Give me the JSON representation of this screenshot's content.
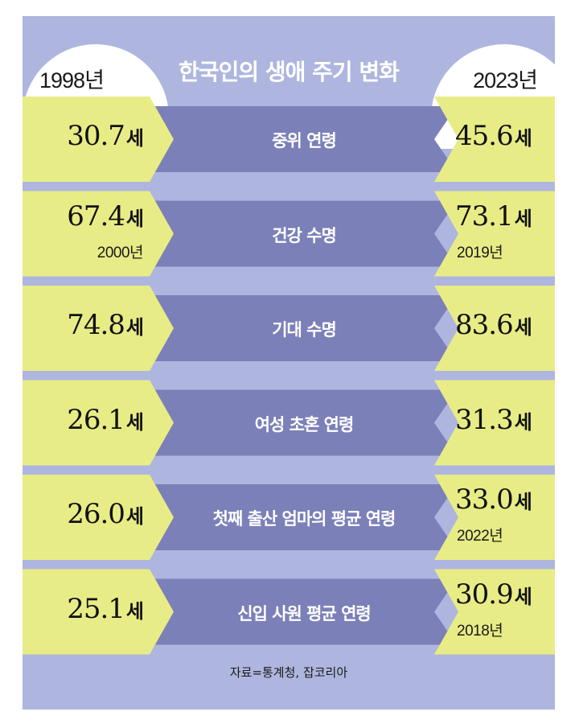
{
  "title": "한국인의 생애 주기 변화",
  "year_left": "1998년",
  "year_right": "2023년",
  "unit": "세",
  "rows": [
    {
      "label": "중위 연령",
      "left": "30.7",
      "left_year": "",
      "right": "45.6",
      "right_year": ""
    },
    {
      "label": "건강 수명",
      "left": "67.4",
      "left_year": "2000년",
      "right": "73.1",
      "right_year": "2019년"
    },
    {
      "label": "기대 수명",
      "left": "74.8",
      "left_year": "",
      "right": "83.6",
      "right_year": ""
    },
    {
      "label": "여성 초혼 연령",
      "left": "26.1",
      "left_year": "",
      "right": "31.3",
      "right_year": ""
    },
    {
      "label": "첫째 출산 엄마의 평균 연령",
      "left": "26.0",
      "left_year": "",
      "right": "33.0",
      "right_year": "2022년"
    },
    {
      "label": "신입 사원 평균 연령",
      "left": "25.1",
      "left_year": "",
      "right": "30.9",
      "right_year": "2018년"
    }
  ],
  "source": "자료=통계청, 잡코리아",
  "colors": {
    "background": "#aeb6df",
    "band": "#7c80b8",
    "value_box": "#e8ec86",
    "text_light": "#ffffff"
  }
}
